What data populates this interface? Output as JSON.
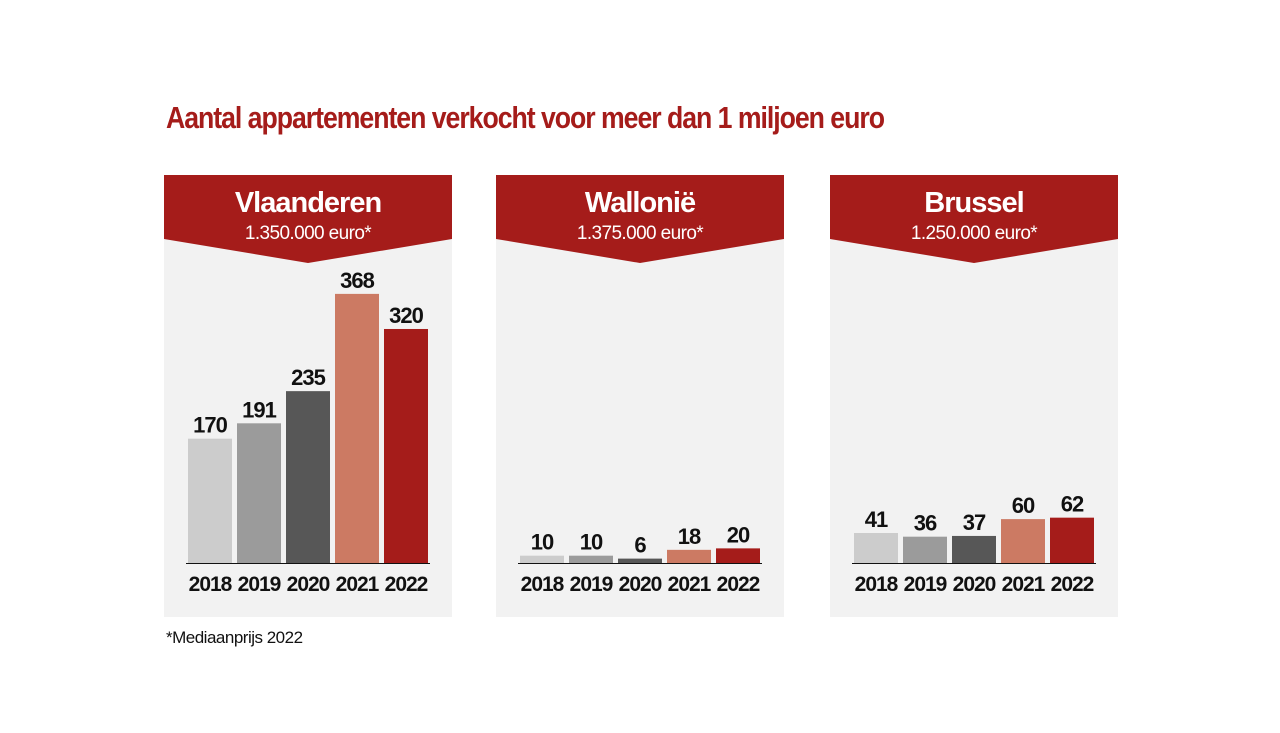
{
  "title": "Aantal appartementen verkocht voor meer dan 1 miljoen euro",
  "footnote": "*Mediaanprijs 2022",
  "colors": {
    "banner": "#a51c1a",
    "panel": "#f2f2f2",
    "bars": [
      "#cccccc",
      "#9b9b9b",
      "#575757",
      "#cc7a63",
      "#a51c1a"
    ]
  },
  "chart_data": [
    {
      "type": "bar",
      "title": "Vlaanderen",
      "subtitle": "1.350.000 euro*",
      "categories": [
        "2018",
        "2019",
        "2020",
        "2021",
        "2022"
      ],
      "values": [
        170,
        191,
        235,
        368,
        320
      ]
    },
    {
      "type": "bar",
      "title": "Wallonië",
      "subtitle": "1.375.000 euro*",
      "categories": [
        "2018",
        "2019",
        "2020",
        "2021",
        "2022"
      ],
      "values": [
        10,
        10,
        6,
        18,
        20
      ]
    },
    {
      "type": "bar",
      "title": "Brussel",
      "subtitle": "1.250.000 euro*",
      "categories": [
        "2018",
        "2019",
        "2020",
        "2021",
        "2022"
      ],
      "values": [
        41,
        36,
        37,
        60,
        62
      ]
    }
  ]
}
